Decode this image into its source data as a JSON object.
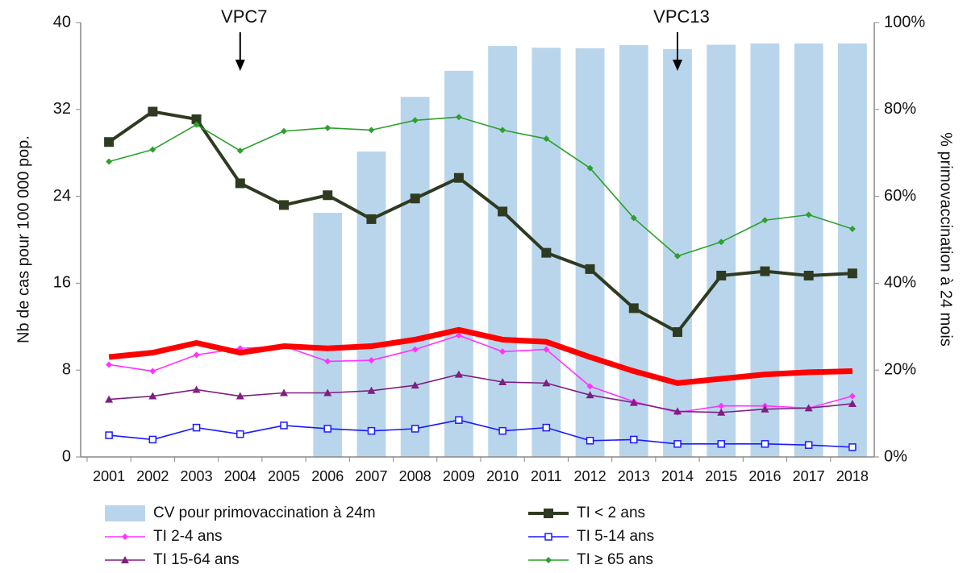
{
  "chart_data": {
    "type": "bar-line",
    "categories": [
      "2001",
      "2002",
      "2003",
      "2004",
      "2005",
      "2006",
      "2007",
      "2008",
      "2009",
      "2010",
      "2011",
      "2012",
      "2013",
      "2014",
      "2015",
      "2016",
      "2017",
      "2018"
    ],
    "ylabel": "Nb de cas pour 100 000  pop.",
    "y2label": "% primovaccination à 24 mois",
    "ylim": [
      0,
      40
    ],
    "yticks": [
      0,
      8,
      16,
      24,
      32,
      40
    ],
    "y2lim": [
      0,
      100
    ],
    "y2ticks": [
      {
        "value": 0,
        "label": "0%"
      },
      {
        "value": 20,
        "label": "20%"
      },
      {
        "value": 40,
        "label": "40%"
      },
      {
        "value": 60,
        "label": "60%"
      },
      {
        "value": 80,
        "label": "80%"
      },
      {
        "value": 100,
        "label": "100%"
      }
    ],
    "annotations": [
      {
        "text": "VPC7",
        "x": "2004"
      },
      {
        "text": "VPC13",
        "x": "2014"
      }
    ],
    "series": [
      {
        "name": "CV pour primovaccination à 24m",
        "type": "bar",
        "axis": "y2",
        "color": "#b9d5ec",
        "values": [
          null,
          null,
          null,
          null,
          null,
          56.2,
          70.3,
          82.9,
          88.9,
          94.6,
          94.2,
          94.1,
          94.8,
          93.9,
          94.9,
          95.2,
          95.2,
          95.2
        ]
      },
      {
        "name": "TI < 2 ans",
        "type": "line",
        "marker": "square",
        "color": "#2f3b21",
        "values": [
          29.0,
          31.8,
          31.1,
          25.2,
          23.2,
          24.1,
          21.9,
          23.8,
          25.7,
          22.6,
          18.8,
          17.3,
          13.7,
          11.5,
          16.7,
          17.1,
          16.7,
          16.9
        ]
      },
      {
        "name": "TI 2-4 ans",
        "type": "line",
        "marker": "diamond",
        "color": "#ff33ff",
        "values": [
          8.5,
          7.9,
          9.4,
          10.0,
          10.2,
          8.8,
          8.9,
          9.9,
          11.2,
          9.7,
          9.9,
          6.5,
          5.1,
          4.1,
          4.7,
          4.7,
          4.5,
          5.6
        ]
      },
      {
        "name": "TI 5-14 ans",
        "type": "line",
        "marker": "open-square",
        "color": "#1a1aff",
        "values": [
          2.0,
          1.6,
          2.7,
          2.1,
          2.9,
          2.6,
          2.4,
          2.6,
          3.4,
          2.4,
          2.7,
          1.5,
          1.6,
          1.2,
          1.2,
          1.2,
          1.1,
          0.9
        ]
      },
      {
        "name": "TI 15-64 ans",
        "type": "line",
        "marker": "triangle",
        "color": "#7f1f7f",
        "values": [
          5.3,
          5.6,
          6.2,
          5.6,
          5.9,
          5.9,
          6.1,
          6.6,
          7.6,
          6.9,
          6.8,
          5.7,
          5.0,
          4.2,
          4.1,
          4.4,
          4.5,
          4.9
        ]
      },
      {
        "name": "TI ≥ 65 ans",
        "type": "line",
        "marker": "diamond",
        "color": "#2ca02c",
        "values": [
          27.2,
          28.3,
          30.6,
          28.2,
          30.0,
          30.3,
          30.1,
          31.0,
          31.3,
          30.1,
          29.3,
          26.6,
          22.0,
          18.5,
          19.8,
          21.8,
          22.3,
          21.0
        ]
      },
      {
        "type": "line",
        "marker": "none",
        "color": "#ff0000",
        "values": [
          9.2,
          9.6,
          10.5,
          9.6,
          10.2,
          10.0,
          10.2,
          10.8,
          11.7,
          10.8,
          10.6,
          9.2,
          7.9,
          6.8,
          7.2,
          7.6,
          7.8,
          7.9
        ]
      }
    ]
  }
}
